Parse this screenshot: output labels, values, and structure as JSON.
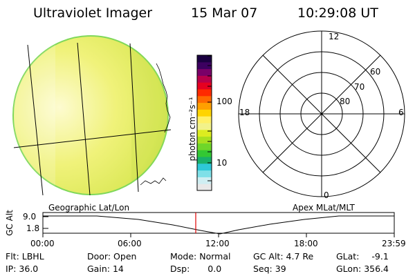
{
  "header": {
    "instrument": "Ultraviolet Imager",
    "date": "15 Mar 07",
    "time": "10:29:08 UT"
  },
  "colorbar": {
    "unit_label": "photon cm⁻²s⁻¹",
    "tick_labels": [
      "100",
      "10"
    ],
    "colors": [
      "#e8e8e8",
      "#cfeef2",
      "#7fe0e8",
      "#2ec8d8",
      "#19b06a",
      "#33c833",
      "#6fd62a",
      "#a8e020",
      "#dcec20",
      "#f2f28a",
      "#fff066",
      "#ffd400",
      "#ffa000",
      "#ff6a00",
      "#ff2a00",
      "#e60020",
      "#b8004a",
      "#7a0068",
      "#3c0060",
      "#1a0040"
    ]
  },
  "polar_plot": {
    "mlt_labels": {
      "top": "12",
      "left": "18",
      "right": "6",
      "bottom": "0"
    },
    "mlat_labels": [
      "80",
      "70",
      "60"
    ]
  },
  "timeline": {
    "left_label": "Geographic Lat/Lon",
    "right_label": "Apex MLat/MLT",
    "axis_label": "GC Alt",
    "y_ticks": [
      "9.0",
      "1.8"
    ],
    "x_ticks": [
      "00:00",
      "06:00",
      "12:00",
      "18:00",
      "23:59"
    ]
  },
  "status": {
    "flt_label": "Flt:",
    "flt_value": "LBHL",
    "ip_label": "IP:",
    "ip_value": "36.0",
    "door_label": "Door:",
    "door_value": "Open",
    "gain_label": "Gain:",
    "gain_value": "14",
    "mode_label": "Mode:",
    "mode_value": "Normal",
    "dsp_label": "Dsp:",
    "dsp_value": "0.0",
    "gcalt_label": "GC Alt:",
    "gcalt_value": "4.7 Re",
    "seq_label": "Seq:",
    "seq_value": "39",
    "glat_label": "GLat:",
    "glat_value": "-9.1",
    "glon_label": "GLon:",
    "glon_value": "356.4"
  }
}
